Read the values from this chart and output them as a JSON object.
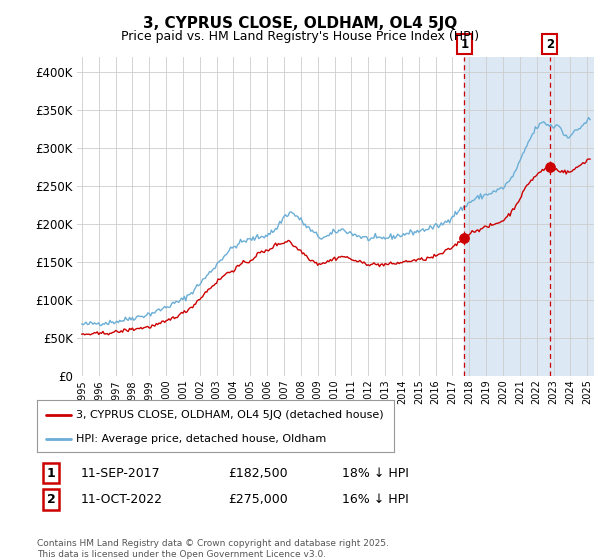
{
  "title": "3, CYPRUS CLOSE, OLDHAM, OL4 5JQ",
  "subtitle": "Price paid vs. HM Land Registry's House Price Index (HPI)",
  "legend_line1": "3, CYPRUS CLOSE, OLDHAM, OL4 5JQ (detached house)",
  "legend_line2": "HPI: Average price, detached house, Oldham",
  "annotation1_label": "1",
  "annotation1_date": "11-SEP-2017",
  "annotation1_price": "£182,500",
  "annotation1_note": "18% ↓ HPI",
  "annotation1_year": 2017.7,
  "annotation1_value": 182500,
  "annotation2_label": "2",
  "annotation2_date": "11-OCT-2022",
  "annotation2_price": "£275,000",
  "annotation2_note": "16% ↓ HPI",
  "annotation2_year": 2022.78,
  "annotation2_value": 275000,
  "hpi_color": "#6baed6",
  "price_color": "#cc0000",
  "marker_color": "#cc0000",
  "vline_color": "#cc0000",
  "shade_color": "#dce9f5",
  "background_color": "#ffffff",
  "grid_color": "#cccccc",
  "ylim": [
    0,
    420000
  ],
  "yticks": [
    0,
    50000,
    100000,
    150000,
    200000,
    250000,
    300000,
    350000,
    400000
  ],
  "xlim_start": 1994.7,
  "xlim_end": 2025.4,
  "footer": "Contains HM Land Registry data © Crown copyright and database right 2025.\nThis data is licensed under the Open Government Licence v3.0."
}
